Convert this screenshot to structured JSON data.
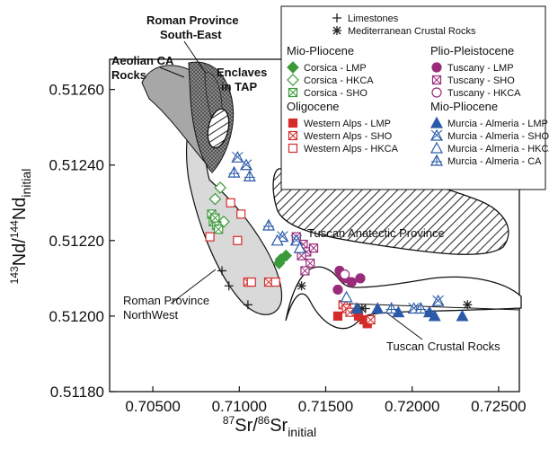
{
  "chart_data": {
    "type": "scatter",
    "title": "",
    "xlabel": {
      "sup": "87",
      "base": "Sr/",
      "sup2": "86",
      "base2": "Sr",
      "sub": "initial"
    },
    "ylabel": {
      "sup": "143",
      "base": "Nd/",
      "sup2": "144",
      "base2": "Nd",
      "sub": "initial"
    },
    "xlim": [
      0.7025,
      0.7262
    ],
    "ylim": [
      0.5118,
      0.51268
    ],
    "x_ticks": [
      "0.70500",
      "0.71000",
      "0.71500",
      "0.72000",
      "0.72500"
    ],
    "x_tick_values": [
      0.705,
      0.71,
      0.715,
      0.72,
      0.725
    ],
    "y_ticks": [
      "0.51180",
      "0.51200",
      "0.51220",
      "0.51240",
      "0.51260"
    ],
    "y_tick_values": [
      0.5118,
      0.512,
      0.5122,
      0.5124,
      0.5126
    ],
    "grid": false,
    "legend_position": "top-right",
    "regions": [
      {
        "name": "roman_se",
        "label": [
          "Roman Province",
          "South-East"
        ]
      },
      {
        "name": "aeolian",
        "label": [
          "Aeolian CA",
          "Rocks"
        ]
      },
      {
        "name": "enclaves",
        "label": [
          "Enclaves",
          "in TAP"
        ]
      },
      {
        "name": "tuscan_anatectic",
        "label": [
          "Tuscan Anatectic Province"
        ]
      },
      {
        "name": "roman_nw",
        "label": [
          "Roman Province",
          "NorthWest"
        ]
      },
      {
        "name": "tuscan_crustal",
        "label": [
          "Tuscan Crustal Rocks"
        ]
      }
    ],
    "legend": {
      "top": [
        {
          "marker": "plus",
          "label": "Limestones"
        },
        {
          "marker": "asterisk",
          "label": "Mediterranean Crustal Rocks"
        }
      ],
      "groups": [
        {
          "title": "Mio-Pliocene",
          "entries": [
            {
              "key": "corsica_lmp",
              "label": "Corsica - LMP"
            },
            {
              "key": "corsica_hkca",
              "label": "Corsica - HKCA"
            },
            {
              "key": "corsica_sho",
              "label": "Corsica - SHO"
            }
          ]
        },
        {
          "title": "Oligocene",
          "entries": [
            {
              "key": "walps_lmp",
              "label": "Western Alps - LMP"
            },
            {
              "key": "walps_sho",
              "label": "Western Alps - SHO"
            },
            {
              "key": "walps_hkca",
              "label": "Western Alps - HKCA"
            }
          ]
        },
        {
          "title": "Plio-Pleistocene",
          "entries": [
            {
              "key": "tuscany_lmp",
              "label": "Tuscany - LMP"
            },
            {
              "key": "tuscany_sho",
              "label": "Tuscany - SHO"
            },
            {
              "key": "tuscany_hkca",
              "label": "Tuscany - HKCA"
            }
          ]
        },
        {
          "title": "Mio-Pliocene",
          "entries": [
            {
              "key": "murcia_lmp",
              "label": "Murcia - Almeria - LMP"
            },
            {
              "key": "murcia_sho",
              "label": "Murcia - Almeria - SHO"
            },
            {
              "key": "murcia_hkca",
              "label": "Murcia - Almeria - HKCA"
            },
            {
              "key": "murcia_ca",
              "label": "Murcia - Almeria - CA"
            }
          ]
        }
      ]
    },
    "styles": {
      "limestones": {
        "marker": "plus",
        "color": "#222222"
      },
      "crustal": {
        "marker": "asterisk",
        "color": "#222222"
      },
      "corsica_lmp": {
        "marker": "diamond",
        "filled": true,
        "color": "#3a9a3a"
      },
      "corsica_hkca": {
        "marker": "diamond",
        "filled": false,
        "color": "#3a9a3a"
      },
      "corsica_sho": {
        "marker": "xsquare",
        "color": "#3a9a3a"
      },
      "walps_lmp": {
        "marker": "square",
        "filled": true,
        "color": "#d42a2a"
      },
      "walps_sho": {
        "marker": "xsquare",
        "color": "#d42a2a"
      },
      "walps_hkca": {
        "marker": "square",
        "filled": false,
        "color": "#d42a2a"
      },
      "tuscany_lmp": {
        "marker": "circle",
        "filled": true,
        "color": "#9a2a7a"
      },
      "tuscany_sho": {
        "marker": "xsquare",
        "color": "#9a2a7a"
      },
      "tuscany_hkca": {
        "marker": "circle",
        "filled": false,
        "color": "#9a2a7a"
      },
      "murcia_lmp": {
        "marker": "triangle",
        "filled": true,
        "color": "#2a5aa8"
      },
      "murcia_sho": {
        "marker": "xtriangle",
        "color": "#2a5aa8"
      },
      "murcia_hkca": {
        "marker": "triangle",
        "filled": false,
        "color": "#2a5aa8"
      },
      "murcia_ca": {
        "marker": "plustriangle",
        "color": "#2a5aa8"
      }
    },
    "series": [
      {
        "key": "limestones",
        "points": [
          [
            0.709,
            0.51212
          ],
          [
            0.7094,
            0.51208
          ],
          [
            0.7105,
            0.51203
          ],
          [
            0.7173,
            0.51202
          ]
        ]
      },
      {
        "key": "crustal",
        "points": [
          [
            0.7136,
            0.51208
          ],
          [
            0.7171,
            0.51202
          ],
          [
            0.7232,
            0.51203
          ]
        ]
      },
      {
        "key": "corsica_lmp",
        "points": [
          [
            0.7123,
            0.51214
          ],
          [
            0.7124,
            0.51215
          ],
          [
            0.7127,
            0.51216
          ]
        ]
      },
      {
        "key": "corsica_hkca",
        "points": [
          [
            0.7089,
            0.51234
          ],
          [
            0.7091,
            0.51225
          ],
          [
            0.7086,
            0.51231
          ]
        ]
      },
      {
        "key": "corsica_sho",
        "points": [
          [
            0.7084,
            0.51227
          ],
          [
            0.7085,
            0.51225
          ],
          [
            0.7087,
            0.51224
          ],
          [
            0.7088,
            0.51223
          ],
          [
            0.7086,
            0.51226
          ]
        ]
      },
      {
        "key": "walps_lmp",
        "points": [
          [
            0.7157,
            0.512
          ],
          [
            0.7172,
            0.51199
          ],
          [
            0.7174,
            0.51198
          ],
          [
            0.7169,
            0.512
          ]
        ]
      },
      {
        "key": "walps_sho",
        "points": [
          [
            0.7105,
            0.51209
          ],
          [
            0.7117,
            0.51209
          ],
          [
            0.716,
            0.51203
          ],
          [
            0.7162,
            0.51202
          ],
          [
            0.7164,
            0.51201
          ],
          [
            0.7176,
            0.51199
          ]
        ]
      },
      {
        "key": "walps_hkca",
        "points": [
          [
            0.7083,
            0.51221
          ],
          [
            0.7095,
            0.5123
          ],
          [
            0.7101,
            0.51227
          ],
          [
            0.7099,
            0.5122
          ],
          [
            0.7107,
            0.51209
          ],
          [
            0.7121,
            0.51209
          ]
        ]
      },
      {
        "key": "tuscany_lmp",
        "points": [
          [
            0.7158,
            0.51212
          ],
          [
            0.7161,
            0.5121
          ],
          [
            0.7165,
            0.51209
          ],
          [
            0.717,
            0.5121
          ],
          [
            0.7157,
            0.51207
          ],
          [
            0.7159,
            0.51211
          ]
        ]
      },
      {
        "key": "tuscany_sho",
        "points": [
          [
            0.7133,
            0.51221
          ],
          [
            0.7137,
            0.51219
          ],
          [
            0.7139,
            0.51217
          ],
          [
            0.7141,
            0.51214
          ],
          [
            0.7138,
            0.51212
          ],
          [
            0.7136,
            0.51216
          ],
          [
            0.7143,
            0.51218
          ]
        ]
      },
      {
        "key": "tuscany_hkca",
        "points": [
          [
            0.7161,
            0.51211
          ]
        ]
      },
      {
        "key": "murcia_lmp",
        "points": [
          [
            0.7168,
            0.51202
          ],
          [
            0.718,
            0.51202
          ],
          [
            0.7192,
            0.51201
          ],
          [
            0.721,
            0.51201
          ],
          [
            0.7213,
            0.512
          ],
          [
            0.7229,
            0.512
          ]
        ]
      },
      {
        "key": "murcia_sho",
        "points": [
          [
            0.7099,
            0.51242
          ],
          [
            0.7104,
            0.5124
          ],
          [
            0.7125,
            0.51221
          ],
          [
            0.7133,
            0.5122
          ],
          [
            0.7201,
            0.51202
          ],
          [
            0.7215,
            0.51204
          ]
        ]
      },
      {
        "key": "murcia_hkca",
        "points": [
          [
            0.7122,
            0.5122
          ],
          [
            0.7135,
            0.51218
          ],
          [
            0.7162,
            0.51205
          ]
        ]
      },
      {
        "key": "murcia_ca",
        "points": [
          [
            0.7097,
            0.51238
          ],
          [
            0.7106,
            0.51237
          ],
          [
            0.7117,
            0.51224
          ],
          [
            0.7188,
            0.51202
          ],
          [
            0.7205,
            0.51202
          ]
        ]
      }
    ]
  }
}
